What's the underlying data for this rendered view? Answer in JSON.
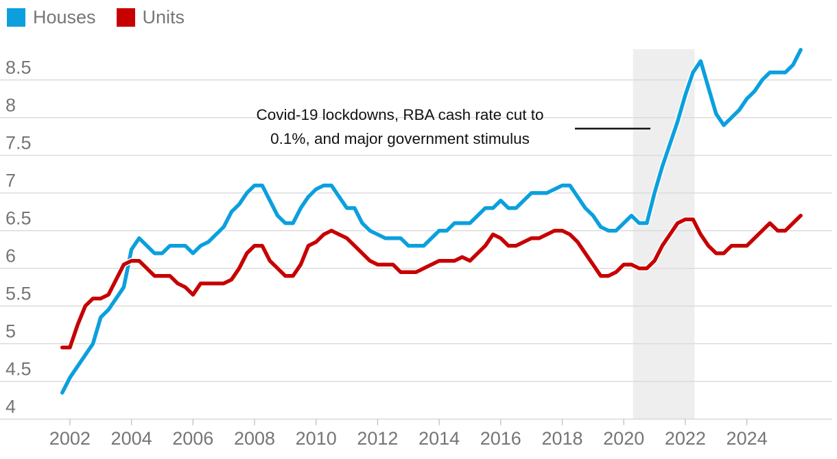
{
  "legend": {
    "items": [
      {
        "label": "Houses",
        "color": "#0ba0dd"
      },
      {
        "label": "Units",
        "color": "#c70000"
      }
    ]
  },
  "annotation": {
    "line1": "Covid-19 lockdowns, RBA cash rate cut to",
    "line2": "0.1%, and major government stimulus",
    "pointer_line_color": "#121212"
  },
  "chart_data": {
    "type": "line",
    "x": [
      2001.75,
      2002,
      2002.25,
      2002.5,
      2002.75,
      2003,
      2003.25,
      2003.5,
      2003.75,
      2004,
      2004.25,
      2004.5,
      2004.75,
      2005,
      2005.25,
      2005.5,
      2005.75,
      2006,
      2006.25,
      2006.5,
      2006.75,
      2007,
      2007.25,
      2007.5,
      2007.75,
      2008,
      2008.25,
      2008.5,
      2008.75,
      2009,
      2009.25,
      2009.5,
      2009.75,
      2010,
      2010.25,
      2010.5,
      2010.75,
      2011,
      2011.25,
      2011.5,
      2011.75,
      2012,
      2012.25,
      2012.5,
      2012.75,
      2013,
      2013.25,
      2013.5,
      2013.75,
      2014,
      2014.25,
      2014.5,
      2014.75,
      2015,
      2015.25,
      2015.5,
      2015.75,
      2016,
      2016.25,
      2016.5,
      2016.75,
      2017,
      2017.25,
      2017.5,
      2017.75,
      2018,
      2018.25,
      2018.5,
      2018.75,
      2019,
      2019.25,
      2019.5,
      2019.75,
      2020,
      2020.25,
      2020.5,
      2020.75,
      2021,
      2021.25,
      2021.5,
      2021.75,
      2022,
      2022.25,
      2022.5,
      2022.75,
      2023,
      2023.25,
      2023.5,
      2023.75,
      2024,
      2024.25,
      2024.5,
      2024.75,
      2025,
      2025.25,
      2025.5,
      2025.75
    ],
    "series": [
      {
        "name": "Houses",
        "color": "#0ba0dd",
        "values": [
          4.35,
          4.55,
          4.7,
          4.85,
          5,
          5.35,
          5.45,
          5.6,
          5.75,
          6.25,
          6.4,
          6.3,
          6.2,
          6.2,
          6.3,
          6.3,
          6.3,
          6.2,
          6.3,
          6.35,
          6.45,
          6.55,
          6.75,
          6.85,
          7,
          7.1,
          7.1,
          6.9,
          6.7,
          6.6,
          6.6,
          6.8,
          6.95,
          7.05,
          7.1,
          7.1,
          6.95,
          6.8,
          6.8,
          6.6,
          6.5,
          6.45,
          6.4,
          6.4,
          6.4,
          6.3,
          6.3,
          6.3,
          6.4,
          6.5,
          6.5,
          6.6,
          6.6,
          6.6,
          6.7,
          6.8,
          6.8,
          6.9,
          6.8,
          6.8,
          6.9,
          7,
          7,
          7,
          7.05,
          7.1,
          7.1,
          6.95,
          6.8,
          6.7,
          6.55,
          6.5,
          6.5,
          6.6,
          6.7,
          6.6,
          6.6,
          7,
          7.35,
          7.65,
          7.95,
          8.3,
          8.6,
          8.75,
          8.4,
          8.05,
          7.9,
          8,
          8.1,
          8.25,
          8.35,
          8.5,
          8.6,
          8.6,
          8.6,
          8.7,
          8.9
        ]
      },
      {
        "name": "Units",
        "color": "#c70000",
        "values": [
          4.95,
          4.95,
          5.25,
          5.5,
          5.6,
          5.6,
          5.65,
          5.85,
          6.05,
          6.1,
          6.1,
          6,
          5.9,
          5.9,
          5.9,
          5.8,
          5.75,
          5.65,
          5.8,
          5.8,
          5.8,
          5.8,
          5.85,
          6,
          6.2,
          6.3,
          6.3,
          6.1,
          6,
          5.9,
          5.9,
          6.05,
          6.3,
          6.35,
          6.45,
          6.5,
          6.45,
          6.4,
          6.3,
          6.2,
          6.1,
          6.05,
          6.05,
          6.05,
          5.95,
          5.95,
          5.95,
          6,
          6.05,
          6.1,
          6.1,
          6.1,
          6.15,
          6.1,
          6.2,
          6.3,
          6.45,
          6.4,
          6.3,
          6.3,
          6.35,
          6.4,
          6.4,
          6.45,
          6.5,
          6.5,
          6.45,
          6.35,
          6.2,
          6.05,
          5.9,
          5.9,
          5.95,
          6.05,
          6.05,
          6,
          6,
          6.1,
          6.3,
          6.45,
          6.6,
          6.65,
          6.65,
          6.45,
          6.3,
          6.2,
          6.2,
          6.3,
          6.3,
          6.3,
          6.4,
          6.5,
          6.6,
          6.5,
          6.5,
          6.6,
          6.7
        ]
      }
    ],
    "title": "",
    "xlabel": "",
    "ylabel": "",
    "ylim": [
      4,
      8.5
    ],
    "yticks": [
      8.5,
      8,
      7.5,
      7,
      6.5,
      6,
      5.5,
      5,
      4.5,
      4
    ],
    "ytick_labels": [
      "8.5",
      "8",
      "7.5",
      "7",
      "6.5",
      "6",
      "5.5",
      "5",
      "4.5",
      "4"
    ],
    "xticks": [
      2002,
      2004,
      2006,
      2008,
      2010,
      2012,
      2014,
      2016,
      2018,
      2020,
      2022,
      2024
    ],
    "xtick_labels": [
      "2002",
      "2004",
      "2006",
      "2008",
      "2010",
      "2012",
      "2014",
      "2016",
      "2018",
      "2020",
      "2022",
      "2024"
    ],
    "grid": true,
    "gridline_color": "#d9d9d9",
    "tick_label_color": "#757575",
    "legend_position": "top-left",
    "highlight_band": {
      "x_start": 2020.3,
      "x_end": 2022.3,
      "color": "#eeeeee"
    }
  }
}
